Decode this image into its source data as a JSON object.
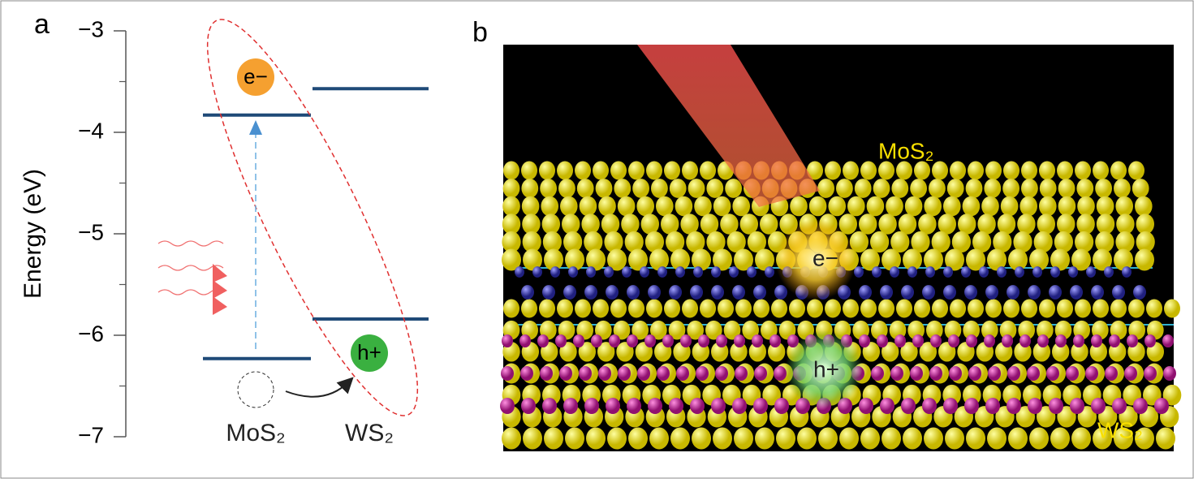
{
  "panel_a": {
    "label": "a",
    "y_label": "Energy (eV)",
    "ylim": [
      -7,
      -3
    ],
    "yticks": [
      {
        "value": -3,
        "label": "−3"
      },
      {
        "value": -4,
        "label": "−4"
      },
      {
        "value": -5,
        "label": "−5"
      },
      {
        "value": -6,
        "label": "−6"
      },
      {
        "value": -7,
        "label": "−7"
      }
    ],
    "minor_yticks": [
      -3.5,
      -4.5,
      -5.5,
      -6.5
    ],
    "levels": [
      {
        "material": "MoS₂",
        "cb": -3.83,
        "vb": -6.23
      },
      {
        "material": "WS₂",
        "cb": -3.57,
        "vb": -5.84
      }
    ],
    "electron": "e−",
    "hole": "h+"
  },
  "panel_b": {
    "label": "b",
    "top_layer": "MoS₂",
    "bottom_layer": "WS₂",
    "electron": "e−",
    "hole": "h+"
  }
}
